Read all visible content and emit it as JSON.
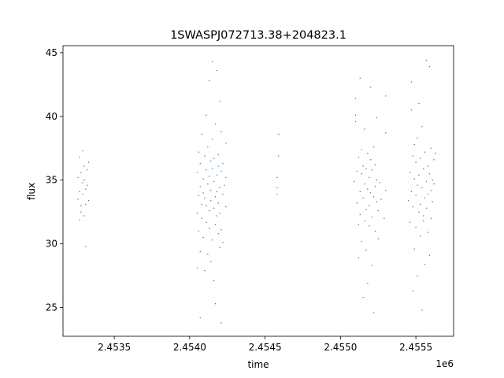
{
  "chart_data": {
    "type": "scatter",
    "title": "1SWASPJ072713.38+204823.1",
    "xlabel": "time",
    "ylabel": "flux",
    "x_offset_label": "1e6",
    "xlim": [
      2.45316,
      2.45575
    ],
    "ylim": [
      22.75,
      45.55
    ],
    "x_ticks": [
      2.4535,
      2.454,
      2.4545,
      2.455,
      2.4555
    ],
    "x_tick_labels": [
      "2.4535",
      "2.4540",
      "2.4545",
      "2.4550",
      "2.4555"
    ],
    "y_ticks": [
      25,
      30,
      35,
      40,
      45
    ],
    "y_tick_labels": [
      "25",
      "30",
      "35",
      "40",
      "45"
    ],
    "grid": false,
    "marker_color": "#1f77b4",
    "series": [
      {
        "points": [
          [
            2.45326,
            33.5
          ],
          [
            2.45326,
            35.2
          ],
          [
            2.45327,
            31.9
          ],
          [
            2.45327,
            34.1
          ],
          [
            2.45327,
            36.8
          ],
          [
            2.45328,
            33.0
          ],
          [
            2.45328,
            35.6
          ],
          [
            2.45328,
            32.5
          ],
          [
            2.45329,
            34.8
          ],
          [
            2.45329,
            37.3
          ],
          [
            2.45329,
            33.9
          ],
          [
            2.4533,
            35.0
          ],
          [
            2.4533,
            32.2
          ],
          [
            2.4533,
            36.1
          ],
          [
            2.45331,
            34.3
          ],
          [
            2.45331,
            33.1
          ],
          [
            2.45331,
            29.8
          ],
          [
            2.45332,
            35.8
          ],
          [
            2.45332,
            34.6
          ],
          [
            2.45333,
            33.4
          ],
          [
            2.45333,
            36.4
          ],
          [
            2.45405,
            28.1
          ],
          [
            2.45405,
            32.4
          ],
          [
            2.45405,
            35.6
          ],
          [
            2.45406,
            33.8
          ],
          [
            2.45406,
            37.2
          ],
          [
            2.45406,
            31.0
          ],
          [
            2.45407,
            34.5
          ],
          [
            2.45407,
            29.4
          ],
          [
            2.45407,
            36.3
          ],
          [
            2.45407,
            24.2
          ],
          [
            2.45408,
            33.1
          ],
          [
            2.45408,
            38.6
          ],
          [
            2.45408,
            32.0
          ],
          [
            2.45409,
            35.1
          ],
          [
            2.45409,
            30.5
          ],
          [
            2.45409,
            34.0
          ],
          [
            2.4541,
            36.9
          ],
          [
            2.4541,
            27.9
          ],
          [
            2.4541,
            33.6
          ],
          [
            2.45411,
            31.7
          ],
          [
            2.45411,
            35.8
          ],
          [
            2.45411,
            40.1
          ],
          [
            2.45411,
            33.0
          ],
          [
            2.45412,
            34.7
          ],
          [
            2.45412,
            29.2
          ],
          [
            2.45412,
            37.6
          ],
          [
            2.45413,
            32.6
          ],
          [
            2.45413,
            35.3
          ],
          [
            2.45413,
            42.8
          ],
          [
            2.45413,
            31.2
          ],
          [
            2.45414,
            34.2
          ],
          [
            2.45414,
            36.5
          ],
          [
            2.45414,
            28.6
          ],
          [
            2.45414,
            33.4
          ],
          [
            2.45415,
            30.3
          ],
          [
            2.45415,
            35.9
          ],
          [
            2.45415,
            38.2
          ],
          [
            2.45415,
            44.3
          ],
          [
            2.45416,
            32.8
          ],
          [
            2.45416,
            34.9
          ],
          [
            2.45416,
            27.1
          ],
          [
            2.45416,
            36.7
          ],
          [
            2.45417,
            31.5
          ],
          [
            2.45417,
            33.7
          ],
          [
            2.45417,
            39.4
          ],
          [
            2.45417,
            25.3
          ],
          [
            2.45418,
            35.4
          ],
          [
            2.45418,
            32.2
          ],
          [
            2.45418,
            43.6
          ],
          [
            2.45418,
            34.1
          ],
          [
            2.45419,
            30.8
          ],
          [
            2.45419,
            37.0
          ],
          [
            2.45419,
            33.2
          ],
          [
            2.45419,
            36.1
          ],
          [
            2.4542,
            29.7
          ],
          [
            2.4542,
            34.4
          ],
          [
            2.4542,
            41.2
          ],
          [
            2.4542,
            32.4
          ],
          [
            2.45421,
            35.7
          ],
          [
            2.45421,
            31.1
          ],
          [
            2.45421,
            23.8
          ],
          [
            2.45421,
            38.8
          ],
          [
            2.45422,
            33.9
          ],
          [
            2.45422,
            36.3
          ],
          [
            2.45422,
            30.1
          ],
          [
            2.45423,
            34.6
          ],
          [
            2.45424,
            37.9
          ],
          [
            2.45424,
            35.2
          ],
          [
            2.45424,
            32.9
          ],
          [
            2.45458,
            34.4
          ],
          [
            2.45458,
            35.2
          ],
          [
            2.45458,
            33.9
          ],
          [
            2.45459,
            38.6
          ],
          [
            2.45459,
            36.9
          ],
          [
            2.45509,
            34.9
          ],
          [
            2.4551,
            40.1
          ],
          [
            2.4551,
            41.4
          ],
          [
            2.4551,
            39.6
          ],
          [
            2.45511,
            33.2
          ],
          [
            2.45511,
            35.7
          ],
          [
            2.45512,
            31.5
          ],
          [
            2.45512,
            36.8
          ],
          [
            2.45512,
            28.9
          ],
          [
            2.45513,
            34.1
          ],
          [
            2.45513,
            43.0
          ],
          [
            2.45513,
            32.3
          ],
          [
            2.45514,
            35.5
          ],
          [
            2.45514,
            30.2
          ],
          [
            2.45514,
            37.4
          ],
          [
            2.45515,
            33.6
          ],
          [
            2.45515,
            25.8
          ],
          [
            2.45515,
            36.1
          ],
          [
            2.45516,
            31.8
          ],
          [
            2.45516,
            34.7
          ],
          [
            2.45516,
            39.0
          ],
          [
            2.45517,
            32.7
          ],
          [
            2.45517,
            35.9
          ],
          [
            2.45517,
            29.5
          ],
          [
            2.45518,
            34.3
          ],
          [
            2.45518,
            37.1
          ],
          [
            2.45518,
            26.9
          ],
          [
            2.45519,
            33.0
          ],
          [
            2.45519,
            35.2
          ],
          [
            2.45519,
            31.4
          ],
          [
            2.4552,
            36.6
          ],
          [
            2.4552,
            34.0
          ],
          [
            2.4552,
            42.3
          ],
          [
            2.45521,
            32.1
          ],
          [
            2.45521,
            35.8
          ],
          [
            2.45521,
            28.3
          ],
          [
            2.45522,
            33.7
          ],
          [
            2.45522,
            37.6
          ],
          [
            2.45522,
            24.6
          ],
          [
            2.45523,
            34.5
          ],
          [
            2.45523,
            31.0
          ],
          [
            2.45523,
            36.2
          ],
          [
            2.45524,
            33.3
          ],
          [
            2.45524,
            39.9
          ],
          [
            2.45524,
            35.0
          ],
          [
            2.45525,
            32.6
          ],
          [
            2.45525,
            30.4
          ],
          [
            2.45526,
            34.8
          ],
          [
            2.45527,
            33.5
          ],
          [
            2.45529,
            32.0
          ],
          [
            2.4553,
            41.6
          ],
          [
            2.4553,
            34.2
          ],
          [
            2.4553,
            38.7
          ],
          [
            2.45545,
            33.4
          ],
          [
            2.45546,
            35.6
          ],
          [
            2.45546,
            31.7
          ],
          [
            2.45547,
            34.1
          ],
          [
            2.45547,
            40.5
          ],
          [
            2.45547,
            42.7
          ],
          [
            2.45548,
            36.9
          ],
          [
            2.45548,
            26.3
          ],
          [
            2.45548,
            32.9
          ],
          [
            2.45549,
            35.1
          ],
          [
            2.45549,
            29.6
          ],
          [
            2.45549,
            37.8
          ],
          [
            2.4555,
            33.8
          ],
          [
            2.4555,
            31.3
          ],
          [
            2.4555,
            36.4
          ],
          [
            2.45551,
            34.6
          ],
          [
            2.45551,
            27.5
          ],
          [
            2.45551,
            38.3
          ],
          [
            2.45552,
            32.5
          ],
          [
            2.45552,
            35.4
          ],
          [
            2.45552,
            41.0
          ],
          [
            2.45553,
            33.1
          ],
          [
            2.45553,
            30.6
          ],
          [
            2.45553,
            36.7
          ],
          [
            2.45554,
            34.4
          ],
          [
            2.45554,
            24.8
          ],
          [
            2.45554,
            39.2
          ],
          [
            2.45555,
            32.2
          ],
          [
            2.45555,
            35.9
          ],
          [
            2.45555,
            31.8
          ],
          [
            2.45556,
            33.6
          ],
          [
            2.45556,
            37.2
          ],
          [
            2.45556,
            28.4
          ],
          [
            2.45557,
            34.9
          ],
          [
            2.45557,
            44.4
          ],
          [
            2.45557,
            32.8
          ],
          [
            2.45558,
            36.1
          ],
          [
            2.45558,
            30.9
          ],
          [
            2.45558,
            33.9
          ],
          [
            2.45559,
            35.5
          ],
          [
            2.45559,
            43.9
          ],
          [
            2.45559,
            29.1
          ],
          [
            2.4556,
            34.2
          ],
          [
            2.4556,
            37.5
          ],
          [
            2.4556,
            32.0
          ],
          [
            2.45561,
            35.0
          ],
          [
            2.45561,
            33.3
          ],
          [
            2.45562,
            36.6
          ],
          [
            2.45562,
            34.7
          ],
          [
            2.45563,
            37.1
          ]
        ]
      }
    ]
  }
}
